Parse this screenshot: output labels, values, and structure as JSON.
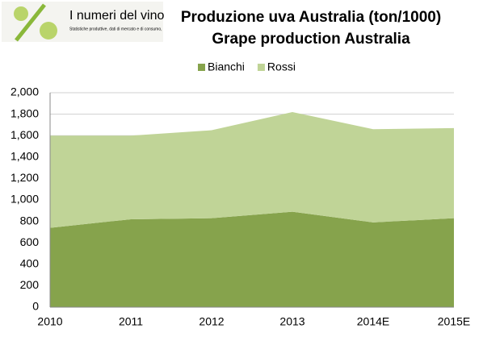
{
  "logo": {
    "name": "I numeri del vino",
    "tagline": "Statistiche produttive, dati di mercato e di consumo,"
  },
  "chart_data": {
    "type": "stacked_area",
    "title": "Produzione uva Australia (ton/1000)",
    "subtitle": "Grape production Australia",
    "categories": [
      "2010",
      "2011",
      "2012",
      "2013",
      "2014E",
      "2015E"
    ],
    "series": [
      {
        "name": "Bianchi",
        "color": "#86a34c",
        "values": [
          740,
          820,
          830,
          890,
          790,
          830
        ]
      },
      {
        "name": "Rossi",
        "color": "#c0d497",
        "values": [
          860,
          780,
          820,
          930,
          870,
          840
        ]
      }
    ],
    "ylim": [
      0,
      2000
    ],
    "yticks": [
      0,
      200,
      400,
      600,
      800,
      {
        "value": 1000,
        "label": "1,000"
      },
      {
        "value": 1200,
        "label": "1,200"
      },
      {
        "value": 1400,
        "label": "1,400"
      },
      {
        "value": 1600,
        "label": "1,600"
      },
      {
        "value": 1800,
        "label": "1,800"
      },
      {
        "value": 2000,
        "label": "2,000"
      }
    ],
    "grid": true,
    "legend": "top"
  }
}
